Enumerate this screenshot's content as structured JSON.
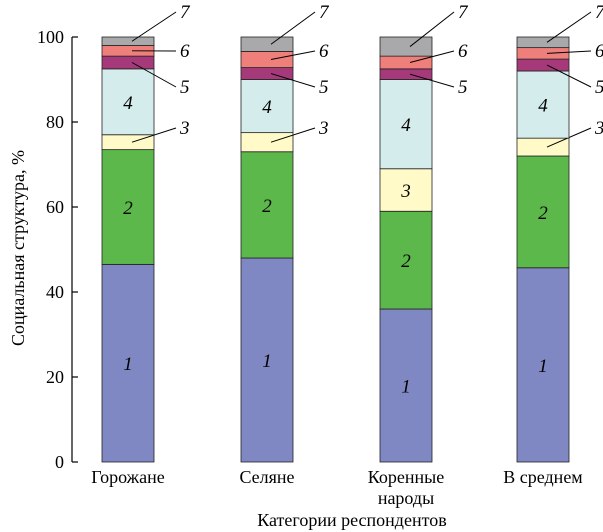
{
  "chart_data": {
    "type": "bar",
    "stacked": true,
    "categories": [
      "Горожане",
      "Селяне",
      "Коренные народы",
      "В среднем"
    ],
    "category_lines": [
      [
        "Горожане"
      ],
      [
        "Селяне"
      ],
      [
        "Коренные",
        "народы"
      ],
      [
        "В среднем"
      ]
    ],
    "xlabel": "Категории респондентов",
    "ylabel": "Социальная структура, %",
    "ylim": [
      0,
      100
    ],
    "yticks": [
      0,
      20,
      40,
      60,
      80,
      100
    ],
    "yticklabels": [
      "0",
      "20",
      "40",
      "60",
      "80",
      "100"
    ],
    "series": [
      {
        "name": "1",
        "color": "#8088c4",
        "values": [
          46.5,
          48.0,
          36.0,
          45.7
        ]
      },
      {
        "name": "2",
        "color": "#5db84b",
        "values": [
          27.0,
          25.0,
          23.0,
          26.3
        ]
      },
      {
        "name": "3",
        "color": "#fffac8",
        "values": [
          3.5,
          4.5,
          10.0,
          4.2
        ]
      },
      {
        "name": "4",
        "color": "#d4ecec",
        "values": [
          15.5,
          12.5,
          21.0,
          15.8
        ]
      },
      {
        "name": "5",
        "color": "#a6397a",
        "values": [
          3.0,
          2.8,
          2.5,
          2.8
        ]
      },
      {
        "name": "6",
        "color": "#ef7f7b",
        "values": [
          2.5,
          3.8,
          3.0,
          2.7
        ]
      },
      {
        "name": "7",
        "color": "#a9a9ab",
        "values": [
          2.0,
          3.4,
          4.5,
          2.5
        ]
      }
    ],
    "grid": false,
    "legend": "none"
  }
}
